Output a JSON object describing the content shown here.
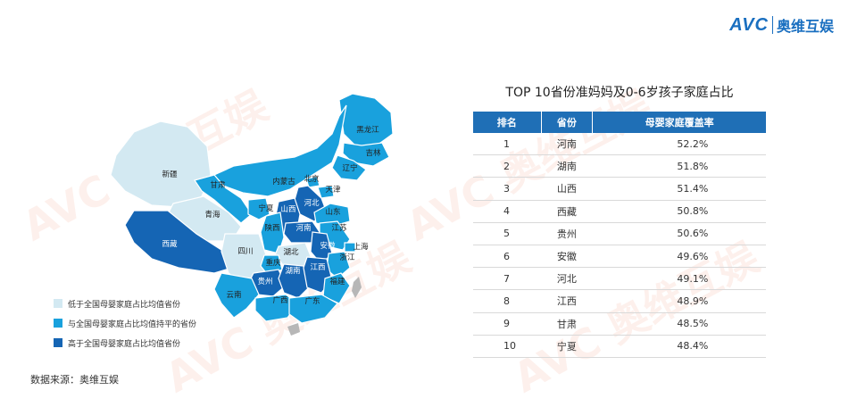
{
  "logo": {
    "avc": "AVC",
    "cn": "奥维互娱"
  },
  "watermark_text": "AVC 奥维互娱",
  "map": {
    "colors": {
      "low": "#d3e9f2",
      "mid": "#19a1dd",
      "high": "#1565b4",
      "none": "#b7b7b7",
      "border": "#ffffff"
    },
    "labels": [
      {
        "name": "黑龙江",
        "level": "mid"
      },
      {
        "name": "吉林",
        "level": "mid"
      },
      {
        "name": "辽宁",
        "level": "mid"
      },
      {
        "name": "内蒙古",
        "level": "mid"
      },
      {
        "name": "新疆",
        "level": "low"
      },
      {
        "name": "甘肃",
        "level": "mid"
      },
      {
        "name": "宁夏",
        "level": "mid"
      },
      {
        "name": "北京",
        "level": "mid"
      },
      {
        "name": "天津",
        "level": "mid"
      },
      {
        "name": "河北",
        "level": "high"
      },
      {
        "name": "山西",
        "level": "high"
      },
      {
        "name": "山东",
        "level": "mid"
      },
      {
        "name": "青海",
        "level": "low"
      },
      {
        "name": "陕西",
        "level": "mid"
      },
      {
        "name": "河南",
        "level": "high"
      },
      {
        "name": "江苏",
        "level": "mid"
      },
      {
        "name": "西藏",
        "level": "high"
      },
      {
        "name": "安徽",
        "level": "high"
      },
      {
        "name": "上海",
        "level": "mid"
      },
      {
        "name": "四川",
        "level": "low"
      },
      {
        "name": "湖北",
        "level": "low"
      },
      {
        "name": "浙江",
        "level": "mid"
      },
      {
        "name": "重庆",
        "level": "mid"
      },
      {
        "name": "贵州",
        "level": "high"
      },
      {
        "name": "湖南",
        "level": "high"
      },
      {
        "name": "江西",
        "level": "high"
      },
      {
        "name": "福建",
        "level": "mid"
      },
      {
        "name": "云南",
        "level": "mid"
      },
      {
        "name": "广西",
        "level": "mid"
      },
      {
        "name": "广东",
        "level": "mid"
      }
    ]
  },
  "legend": [
    {
      "label": "低于全国母婴家庭占比均值省份",
      "level": "low"
    },
    {
      "label": "与全国母婴家庭占比均值持平的省份",
      "level": "mid"
    },
    {
      "label": "高于全国母婴家庭占比均值省份",
      "level": "high"
    }
  ],
  "source": "数据来源：奥维互娱",
  "chart_data": {
    "type": "table",
    "title": "TOP 10省份准妈妈及0-6岁孩子家庭占比",
    "columns": [
      "排名",
      "省份",
      "母婴家庭覆盖率"
    ],
    "rows": [
      {
        "rank": "1",
        "province": "河南",
        "rate": "52.2%"
      },
      {
        "rank": "2",
        "province": "湖南",
        "rate": "51.8%"
      },
      {
        "rank": "3",
        "province": "山西",
        "rate": "51.4%"
      },
      {
        "rank": "4",
        "province": "西藏",
        "rate": "50.8%"
      },
      {
        "rank": "5",
        "province": "贵州",
        "rate": "50.6%"
      },
      {
        "rank": "6",
        "province": "安徽",
        "rate": "49.6%"
      },
      {
        "rank": "7",
        "province": "河北",
        "rate": "49.1%"
      },
      {
        "rank": "8",
        "province": "江西",
        "rate": "48.9%"
      },
      {
        "rank": "9",
        "province": "甘肃",
        "rate": "48.5%"
      },
      {
        "rank": "10",
        "province": "宁夏",
        "rate": "48.4%"
      }
    ]
  }
}
